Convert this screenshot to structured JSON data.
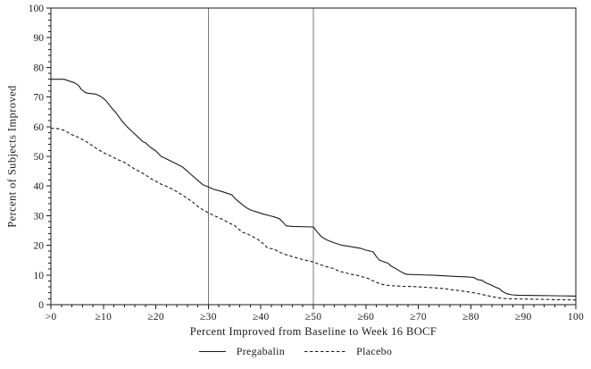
{
  "chart_data": {
    "type": "line",
    "title": "",
    "xlabel": "Percent Improved from Baseline to Week 16 BOCF",
    "ylabel": "Percent of Subjects Improved",
    "xlim": [
      0,
      100
    ],
    "ylim": [
      0,
      100
    ],
    "grid": false,
    "frame": true,
    "minor_tick_step": 2,
    "major_tick_step": 10,
    "x_tick_values": [
      0,
      10,
      20,
      30,
      40,
      50,
      60,
      70,
      80,
      90,
      100
    ],
    "x_tick_labels": [
      ">0",
      "≥10",
      "≥20",
      "≥30",
      "≥40",
      "≥50",
      "≥60",
      "≥70",
      "≥80",
      "≥90",
      "100"
    ],
    "y_tick_values": [
      0,
      10,
      20,
      30,
      40,
      50,
      60,
      70,
      80,
      90,
      100
    ],
    "y_tick_labels": [
      "0",
      "10",
      "20",
      "30",
      "40",
      "50",
      "60",
      "70",
      "80",
      "90",
      "100"
    ],
    "reference_lines_x": [
      30,
      50
    ],
    "legend_position": "bottom-center",
    "colors": {
      "series_line": "#1a1a1a",
      "reference_line": "#777777",
      "frame": "#1a1a1a",
      "text": "#1a1a1a",
      "background": "#ffffff"
    },
    "series": [
      {
        "name": "Pregabalin",
        "line_style": "solid",
        "points": [
          [
            0,
            76
          ],
          [
            2.5,
            76
          ],
          [
            3.5,
            75.4
          ],
          [
            4.5,
            74.8
          ],
          [
            5.2,
            74
          ],
          [
            5.8,
            72.6
          ],
          [
            6.5,
            71.6
          ],
          [
            7,
            71.3
          ],
          [
            8.5,
            71
          ],
          [
            9.5,
            70.2
          ],
          [
            10.5,
            68.8
          ],
          [
            11.5,
            66.5
          ],
          [
            12.5,
            64.5
          ],
          [
            13.5,
            62
          ],
          [
            14.5,
            60
          ],
          [
            15.5,
            58.3
          ],
          [
            16.5,
            56.7
          ],
          [
            17.5,
            55
          ],
          [
            18,
            54.6
          ],
          [
            19,
            53
          ],
          [
            20,
            51.8
          ],
          [
            21,
            50
          ],
          [
            22.5,
            48.7
          ],
          [
            24,
            47.4
          ],
          [
            25,
            46.5
          ],
          [
            26,
            45
          ],
          [
            27,
            43.4
          ],
          [
            28,
            41.9
          ],
          [
            29,
            40.4
          ],
          [
            30,
            39.7
          ],
          [
            31,
            38.9
          ],
          [
            32.5,
            38.2
          ],
          [
            33.5,
            37.6
          ],
          [
            34.5,
            37
          ],
          [
            35,
            35.9
          ],
          [
            36,
            34.4
          ],
          [
            36.7,
            33.4
          ],
          [
            37.5,
            32.4
          ],
          [
            38.2,
            31.8
          ],
          [
            39.5,
            31.1
          ],
          [
            40.5,
            30.5
          ],
          [
            41.5,
            30.1
          ],
          [
            42.5,
            29.6
          ],
          [
            43.5,
            29
          ],
          [
            44.2,
            27.8
          ],
          [
            44.8,
            26.6
          ],
          [
            46,
            26.4
          ],
          [
            50,
            26.2
          ],
          [
            50.6,
            24.8
          ],
          [
            51.6,
            22.8
          ],
          [
            52.6,
            21.8
          ],
          [
            54,
            20.8
          ],
          [
            55.5,
            20
          ],
          [
            57,
            19.6
          ],
          [
            59,
            19
          ],
          [
            60,
            18.4
          ],
          [
            61.4,
            17.8
          ],
          [
            62,
            16.2
          ],
          [
            62.6,
            15
          ],
          [
            63.2,
            14.6
          ],
          [
            64.2,
            14
          ],
          [
            64.8,
            13
          ],
          [
            65.6,
            12.3
          ],
          [
            66.4,
            11.4
          ],
          [
            67.2,
            10.6
          ],
          [
            67.8,
            10.2
          ],
          [
            70,
            10.1
          ],
          [
            73,
            9.9
          ],
          [
            76,
            9.6
          ],
          [
            79,
            9.4
          ],
          [
            80.6,
            9.2
          ],
          [
            81.2,
            8.5
          ],
          [
            82.2,
            8.2
          ],
          [
            82.8,
            7.4
          ],
          [
            83.8,
            6.7
          ],
          [
            84.6,
            6
          ],
          [
            85.4,
            5.4
          ],
          [
            86,
            4.5
          ],
          [
            86.8,
            3.7
          ],
          [
            87.8,
            3.3
          ],
          [
            89,
            3.2
          ],
          [
            92,
            3.1
          ],
          [
            96,
            3
          ],
          [
            100,
            2.9
          ]
        ]
      },
      {
        "name": "Placebo",
        "line_style": "dashed",
        "points": [
          [
            0,
            59.5
          ],
          [
            1.5,
            59.3
          ],
          [
            2.5,
            58.8
          ],
          [
            4,
            57.3
          ],
          [
            5,
            56.6
          ],
          [
            6,
            55.7
          ],
          [
            7,
            54.7
          ],
          [
            8,
            53.5
          ],
          [
            9,
            52.3
          ],
          [
            10,
            51.3
          ],
          [
            11.5,
            50
          ],
          [
            13,
            48.7
          ],
          [
            14,
            48
          ],
          [
            15,
            46.8
          ],
          [
            16,
            45.7
          ],
          [
            17,
            44.8
          ],
          [
            18,
            43.8
          ],
          [
            19,
            42.5
          ],
          [
            20,
            41.6
          ],
          [
            21,
            40.6
          ],
          [
            22,
            39.9
          ],
          [
            23,
            39.1
          ],
          [
            24,
            38.1
          ],
          [
            25,
            37
          ],
          [
            26,
            35.8
          ],
          [
            27,
            34.6
          ],
          [
            28,
            33.1
          ],
          [
            29,
            31.9
          ],
          [
            30,
            31
          ],
          [
            31,
            30.1
          ],
          [
            32,
            29.3
          ],
          [
            33,
            28.5
          ],
          [
            34,
            27.5
          ],
          [
            35,
            26.7
          ],
          [
            35.8,
            25.4
          ],
          [
            36.5,
            24.4
          ],
          [
            37.5,
            23.8
          ],
          [
            38.5,
            22.9
          ],
          [
            39.5,
            21.9
          ],
          [
            40.5,
            20.5
          ],
          [
            41.3,
            19.1
          ],
          [
            42.5,
            18.7
          ],
          [
            43.5,
            17.7
          ],
          [
            44.7,
            16.9
          ],
          [
            46,
            16.2
          ],
          [
            47,
            15.7
          ],
          [
            48,
            15.2
          ],
          [
            49,
            14.8
          ],
          [
            50,
            14.4
          ],
          [
            51,
            13.7
          ],
          [
            52.3,
            12.9
          ],
          [
            54,
            12.1
          ],
          [
            54.8,
            11.3
          ],
          [
            56,
            10.8
          ],
          [
            57,
            10.3
          ],
          [
            58.3,
            9.9
          ],
          [
            59.5,
            9.3
          ],
          [
            60.5,
            8.8
          ],
          [
            61.5,
            7.9
          ],
          [
            62.5,
            7.2
          ],
          [
            63.4,
            6.7
          ],
          [
            65,
            6.4
          ],
          [
            67,
            6.2
          ],
          [
            69,
            6.1
          ],
          [
            71,
            5.9
          ],
          [
            73,
            5.7
          ],
          [
            75,
            5.4
          ],
          [
            76.5,
            5
          ],
          [
            78,
            4.7
          ],
          [
            79.5,
            4.3
          ],
          [
            81,
            3.9
          ],
          [
            82,
            3.5
          ],
          [
            83,
            3.1
          ],
          [
            84,
            2.7
          ],
          [
            85,
            2.4
          ],
          [
            86,
            2.1
          ],
          [
            87.5,
            2
          ],
          [
            90,
            1.9
          ],
          [
            93,
            1.8
          ],
          [
            96,
            1.7
          ],
          [
            100,
            1.6
          ]
        ]
      }
    ]
  },
  "legend": {
    "items": [
      {
        "label": "Pregabalin",
        "style": "solid"
      },
      {
        "label": "Placebo",
        "style": "dashed"
      }
    ]
  }
}
